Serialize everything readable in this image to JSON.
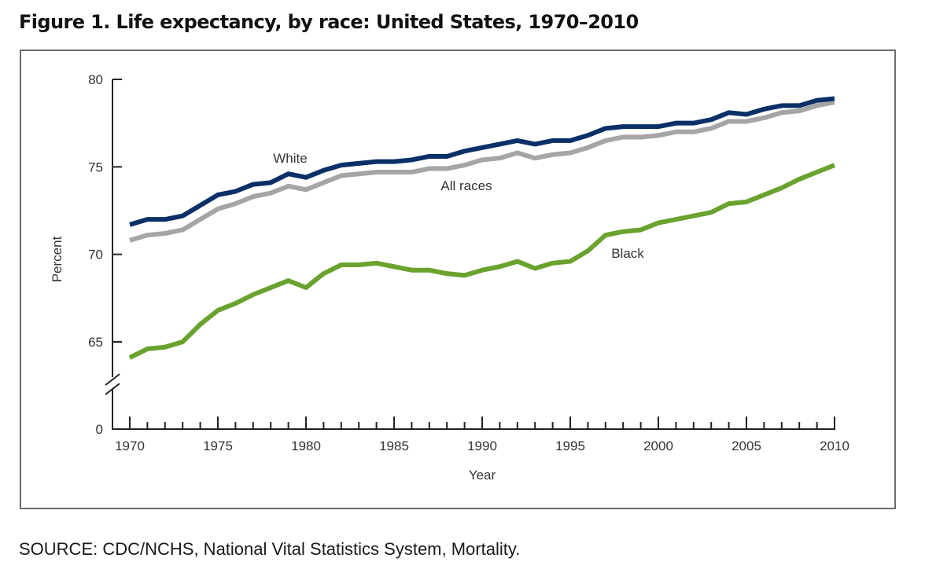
{
  "figure": {
    "title": "Figure 1. Life expectancy, by race: United States, 1970–2010",
    "source": "SOURCE: CDC/NCHS, National Vital Statistics System, Mortality."
  },
  "chart_data": {
    "type": "line",
    "title": "Figure 1. Life expectancy, by race: United States, 1970–2010",
    "xlabel": "Year",
    "ylabel": "Percent",
    "x": [
      1970,
      1971,
      1972,
      1973,
      1974,
      1975,
      1976,
      1977,
      1978,
      1979,
      1980,
      1981,
      1982,
      1983,
      1984,
      1985,
      1986,
      1987,
      1988,
      1989,
      1990,
      1991,
      1992,
      1993,
      1994,
      1995,
      1996,
      1997,
      1998,
      1999,
      2000,
      2001,
      2002,
      2003,
      2004,
      2005,
      2006,
      2007,
      2008,
      2009,
      2010
    ],
    "xlim": [
      1970,
      2010
    ],
    "x_ticks": [
      "1970",
      "1975",
      "1980",
      "1985",
      "1990",
      "1995",
      "2000",
      "2005",
      "2010"
    ],
    "y_ticks": [
      "0",
      "65",
      "70",
      "75",
      "80"
    ],
    "ylim": [
      0,
      80
    ],
    "y_axis_break": [
      0,
      63
    ],
    "grid": false,
    "legend": "inline labels",
    "series": [
      {
        "name": "White",
        "color": "#0b3068",
        "values": [
          71.7,
          72.0,
          72.0,
          72.2,
          72.8,
          73.4,
          73.6,
          74.0,
          74.1,
          74.6,
          74.4,
          74.8,
          75.1,
          75.2,
          75.3,
          75.3,
          75.4,
          75.6,
          75.6,
          75.9,
          76.1,
          76.3,
          76.5,
          76.3,
          76.5,
          76.5,
          76.8,
          77.2,
          77.3,
          77.3,
          77.3,
          77.5,
          77.5,
          77.7,
          78.1,
          78.0,
          78.3,
          78.5,
          78.5,
          78.8,
          78.9
        ]
      },
      {
        "name": "All races",
        "color": "#a5a5a5",
        "values": [
          70.8,
          71.1,
          71.2,
          71.4,
          72.0,
          72.6,
          72.9,
          73.3,
          73.5,
          73.9,
          73.7,
          74.1,
          74.5,
          74.6,
          74.7,
          74.7,
          74.7,
          74.9,
          74.9,
          75.1,
          75.4,
          75.5,
          75.8,
          75.5,
          75.7,
          75.8,
          76.1,
          76.5,
          76.7,
          76.7,
          76.8,
          77.0,
          77.0,
          77.2,
          77.6,
          77.6,
          77.8,
          78.1,
          78.2,
          78.5,
          78.7
        ]
      },
      {
        "name": "Black",
        "color": "#6aa22e",
        "values": [
          64.1,
          64.6,
          64.7,
          65.0,
          66.0,
          66.8,
          67.2,
          67.7,
          68.1,
          68.5,
          68.1,
          68.9,
          69.4,
          69.4,
          69.5,
          69.3,
          69.1,
          69.1,
          68.9,
          68.8,
          69.1,
          69.3,
          69.6,
          69.2,
          69.5,
          69.6,
          70.2,
          71.1,
          71.3,
          71.4,
          71.8,
          72.0,
          72.2,
          72.4,
          72.9,
          73.0,
          73.4,
          73.8,
          74.3,
          74.7,
          75.1
        ]
      }
    ],
    "annotations": [
      {
        "text": "White",
        "series": "White",
        "near_x": 1979
      },
      {
        "text": "All races",
        "series": "All races",
        "near_x": 1990
      },
      {
        "text": "Black",
        "series": "Black",
        "near_x": 1998
      }
    ]
  }
}
